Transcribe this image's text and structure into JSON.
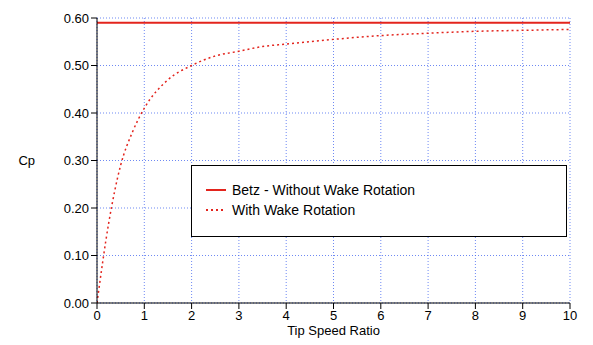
{
  "chart_data": {
    "type": "line",
    "x_label": "Tip Speed Ratio",
    "y_label": "Cp",
    "x": [
      0,
      0.25,
      0.5,
      0.75,
      1,
      1.5,
      2,
      2.5,
      3,
      3.5,
      4,
      5,
      6,
      7,
      8,
      9,
      10
    ],
    "series": [
      {
        "name": "Betz - Without Wake Rotation",
        "color": "#e3241d",
        "line_style": "solid",
        "values": [
          0.59,
          0.59,
          0.59,
          0.59,
          0.59,
          0.59,
          0.59,
          0.59,
          0.59,
          0.59,
          0.59,
          0.59,
          0.59,
          0.59,
          0.59,
          0.59,
          0.59
        ]
      },
      {
        "name": "With Wake Rotation",
        "color": "#e3241d",
        "line_style": "dotted",
        "values": [
          0,
          0.17,
          0.29,
          0.36,
          0.41,
          0.47,
          0.5,
          0.52,
          0.53,
          0.54,
          0.545,
          0.555,
          0.563,
          0.568,
          0.572,
          0.574,
          0.576
        ]
      }
    ],
    "xlim": [
      0,
      10
    ],
    "xticks": [
      0,
      1,
      2,
      3,
      4,
      5,
      6,
      7,
      8,
      9,
      10
    ],
    "ylim": [
      0,
      0.6
    ],
    "yticks": [
      {
        "value": 0,
        "label": "0.00"
      },
      {
        "value": 0.1,
        "label": "0.10"
      },
      {
        "value": 0.2,
        "label": "0.20"
      },
      {
        "value": 0.3,
        "label": "0.30"
      },
      {
        "value": 0.4,
        "label": "0.40"
      },
      {
        "value": 0.5,
        "label": "0.50"
      },
      {
        "value": 0.6,
        "label": "0.60"
      }
    ],
    "grid": true,
    "legend": "lower right"
  }
}
